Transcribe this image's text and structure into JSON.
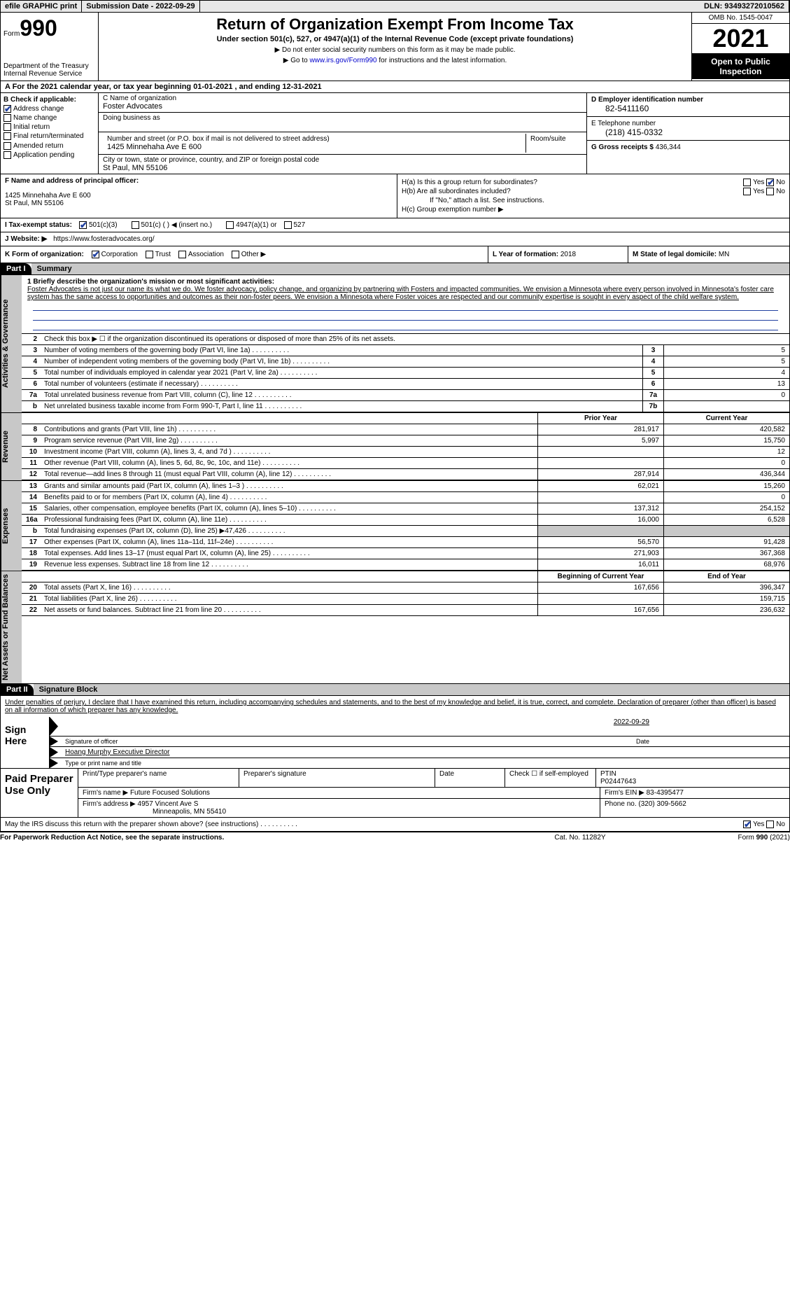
{
  "top": {
    "efile": "efile GRAPHIC print",
    "submission": "Submission Date - 2022-09-29",
    "dln": "DLN: 93493272010562"
  },
  "header": {
    "form_word": "Form",
    "form_num": "990",
    "title": "Return of Organization Exempt From Income Tax",
    "subtitle": "Under section 501(c), 527, or 4947(a)(1) of the Internal Revenue Code (except private foundations)",
    "note1": "▶ Do not enter social security numbers on this form as it may be made public.",
    "note2": "▶ Go to www.irs.gov/Form990 for instructions and the latest information.",
    "dept": "Department of the Treasury Internal Revenue Service",
    "omb": "OMB No. 1545-0047",
    "year": "2021",
    "open": "Open to Public Inspection"
  },
  "sectionA": "A For the 2021 calendar year, or tax year beginning 01-01-2021   , and ending 12-31-2021",
  "B": {
    "label": "B Check if applicable:",
    "items": [
      "Address change",
      "Name change",
      "Initial return",
      "Final return/terminated",
      "Amended return",
      "Application pending"
    ],
    "checked": [
      true,
      false,
      false,
      false,
      false,
      false
    ]
  },
  "C": {
    "name_label": "C Name of organization",
    "name": "Foster Advocates",
    "dba_label": "Doing business as",
    "addr_label": "Number and street (or P.O. box if mail is not delivered to street address)",
    "addr": "1425 Minnehaha Ave E 600",
    "suite_label": "Room/suite",
    "city_label": "City or town, state or province, country, and ZIP or foreign postal code",
    "city": "St Paul, MN  55106"
  },
  "D": {
    "label": "D Employer identification number",
    "val": "82-5411160"
  },
  "E": {
    "label": "E Telephone number",
    "val": "(218) 415-0332"
  },
  "G": {
    "label": "G Gross receipts $",
    "val": "436,344"
  },
  "F": {
    "label": "F  Name and address of principal officer:",
    "addr1": "1425 Minnehaha Ave E 600",
    "addr2": "St Paul, MN  55106"
  },
  "H": {
    "a": "H(a)  Is this a group return for subordinates?",
    "b": "H(b)  Are all subordinates included?",
    "bnote": "If \"No,\" attach a list. See instructions.",
    "c": "H(c)  Group exemption number ▶"
  },
  "I": {
    "label": "I  Tax-exempt status:",
    "opts": [
      "501(c)(3)",
      "501(c) (  ) ◀ (insert no.)",
      "4947(a)(1) or",
      "527"
    ]
  },
  "J": {
    "label": "J  Website: ▶",
    "val": "https://www.fosteradvocates.org/"
  },
  "K": {
    "label": "K Form of organization:",
    "opts": [
      "Corporation",
      "Trust",
      "Association",
      "Other ▶"
    ]
  },
  "L": {
    "label": "L Year of formation:",
    "val": "2018"
  },
  "M": {
    "label": "M State of legal domicile:",
    "val": "MN"
  },
  "part1": {
    "hdr": "Part I",
    "title": "Summary"
  },
  "mission": {
    "label": "1  Briefly describe the organization's mission or most significant activities:",
    "text": "Foster Advocates is not just our name its what we do. We foster advocacy, policy change, and organizing by partnering with Fosters and impacted communities. We envision a Minnesota where every person involved in Minnesota's foster care system has the same access to opportunities and outcomes as their non-foster peers. We envision a Minnesota where Foster voices are respected and our community expertise is sought in every aspect of the child welfare system."
  },
  "gov": {
    "line2": "Check this box ▶ ☐  if the organization discontinued its operations or disposed of more than 25% of its net assets.",
    "rows": [
      {
        "n": "3",
        "label": "Number of voting members of the governing body (Part VI, line 1a)",
        "box": "3",
        "val": "5"
      },
      {
        "n": "4",
        "label": "Number of independent voting members of the governing body (Part VI, line 1b)",
        "box": "4",
        "val": "5"
      },
      {
        "n": "5",
        "label": "Total number of individuals employed in calendar year 2021 (Part V, line 2a)",
        "box": "5",
        "val": "4"
      },
      {
        "n": "6",
        "label": "Total number of volunteers (estimate if necessary)",
        "box": "6",
        "val": "13"
      },
      {
        "n": "7a",
        "label": "Total unrelated business revenue from Part VIII, column (C), line 12",
        "box": "7a",
        "val": "0"
      },
      {
        "n": "b",
        "label": "Net unrelated business taxable income from Form 990-T, Part I, line 11",
        "box": "7b",
        "val": ""
      }
    ]
  },
  "twocol": {
    "c1": "Prior Year",
    "c2": "Current Year"
  },
  "revenue": [
    {
      "n": "8",
      "label": "Contributions and grants (Part VIII, line 1h)",
      "p": "281,917",
      "c": "420,582"
    },
    {
      "n": "9",
      "label": "Program service revenue (Part VIII, line 2g)",
      "p": "5,997",
      "c": "15,750"
    },
    {
      "n": "10",
      "label": "Investment income (Part VIII, column (A), lines 3, 4, and 7d )",
      "p": "",
      "c": "12"
    },
    {
      "n": "11",
      "label": "Other revenue (Part VIII, column (A), lines 5, 6d, 8c, 9c, 10c, and 11e)",
      "p": "",
      "c": "0"
    },
    {
      "n": "12",
      "label": "Total revenue—add lines 8 through 11 (must equal Part VIII, column (A), line 12)",
      "p": "287,914",
      "c": "436,344"
    }
  ],
  "expenses": [
    {
      "n": "13",
      "label": "Grants and similar amounts paid (Part IX, column (A), lines 1–3 )",
      "p": "62,021",
      "c": "15,260"
    },
    {
      "n": "14",
      "label": "Benefits paid to or for members (Part IX, column (A), line 4)",
      "p": "",
      "c": "0"
    },
    {
      "n": "15",
      "label": "Salaries, other compensation, employee benefits (Part IX, column (A), lines 5–10)",
      "p": "137,312",
      "c": "254,152"
    },
    {
      "n": "16a",
      "label": "Professional fundraising fees (Part IX, column (A), line 11e)",
      "p": "16,000",
      "c": "6,528"
    },
    {
      "n": "b",
      "label": "Total fundraising expenses (Part IX, column (D), line 25) ▶47,426",
      "p": "grey",
      "c": "grey"
    },
    {
      "n": "17",
      "label": "Other expenses (Part IX, column (A), lines 11a–11d, 11f–24e)",
      "p": "56,570",
      "c": "91,428"
    },
    {
      "n": "18",
      "label": "Total expenses. Add lines 13–17 (must equal Part IX, column (A), line 25)",
      "p": "271,903",
      "c": "367,368"
    },
    {
      "n": "19",
      "label": "Revenue less expenses. Subtract line 18 from line 12",
      "p": "16,011",
      "c": "68,976"
    }
  ],
  "net_hdr": {
    "c1": "Beginning of Current Year",
    "c2": "End of Year"
  },
  "net": [
    {
      "n": "20",
      "label": "Total assets (Part X, line 16)",
      "p": "167,656",
      "c": "396,347"
    },
    {
      "n": "21",
      "label": "Total liabilities (Part X, line 26)",
      "p": "",
      "c": "159,715"
    },
    {
      "n": "22",
      "label": "Net assets or fund balances. Subtract line 21 from line 20",
      "p": "167,656",
      "c": "236,632"
    }
  ],
  "part2": {
    "hdr": "Part II",
    "title": "Signature Block"
  },
  "sig": {
    "text": "Under penalties of perjury, I declare that I have examined this return, including accompanying schedules and statements, and to the best of my knowledge and belief, it is true, correct, and complete. Declaration of preparer (other than officer) is based on all information of which preparer has any knowledge.",
    "here": "Sign Here",
    "officer_label": "Signature of officer",
    "date_label": "Date",
    "date": "2022-09-29",
    "name": "Hoang Murphy  Executive Director",
    "name_label": "Type or print name and title"
  },
  "prep": {
    "title": "Paid Preparer Use Only",
    "h1": "Print/Type preparer's name",
    "h2": "Preparer's signature",
    "h3": "Date",
    "h4": "Check ☐ if self-employed",
    "h5": "PTIN",
    "ptin": "P02447643",
    "firm_label": "Firm's name    ▶",
    "firm": "Future Focused Solutions",
    "ein_label": "Firm's EIN ▶",
    "ein": "83-4395477",
    "addr_label": "Firm's address ▶",
    "addr1": "4957 Vincent Ave S",
    "addr2": "Minneapolis, MN  55410",
    "phone_label": "Phone no.",
    "phone": "(320) 309-5662"
  },
  "discuss": "May the IRS discuss this return with the preparer shown above? (see instructions)",
  "footer": {
    "left": "For Paperwork Reduction Act Notice, see the separate instructions.",
    "mid": "Cat. No. 11282Y",
    "right": "Form 990 (2021)"
  },
  "vtabs": {
    "gov": "Activities & Governance",
    "rev": "Revenue",
    "exp": "Expenses",
    "net": "Net Assets or Fund Balances"
  }
}
